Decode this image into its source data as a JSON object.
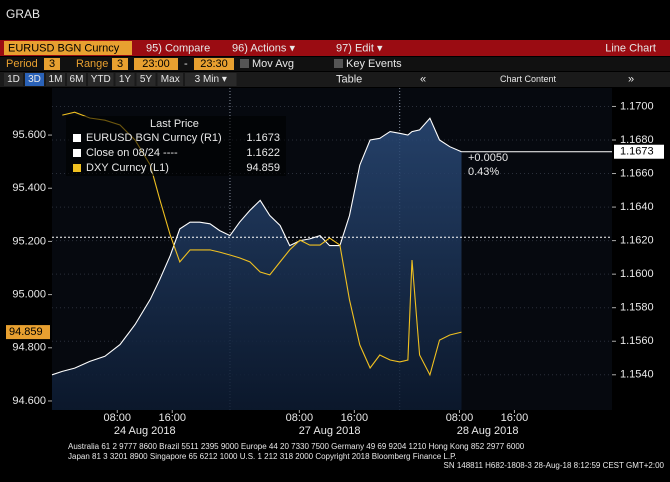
{
  "header": {
    "title": "GRAB"
  },
  "toolbar": {
    "security": "EURUSD BGN Curncy",
    "buttons": [
      "95) Compare",
      "96) Actions ▾",
      "97) Edit ▾"
    ],
    "chart_type": "Line Chart"
  },
  "settings_row": {
    "period_label": "Period",
    "period_value": "3",
    "range_label": "Range",
    "range_value": "3",
    "start": "23:00",
    "dash": "-",
    "end": "23:30",
    "mov_avg": "Mov Avg",
    "key_events": "Key Events"
  },
  "range_buttons": [
    "1D",
    "3D",
    "1M",
    "6M",
    "YTD",
    "1Y",
    "5Y",
    "Max",
    "3 Min ▾"
  ],
  "table_button": "Table",
  "chart_content": "Chart Content",
  "chart_data": {
    "type": "line",
    "legend_title": "Last Price",
    "x": [
      0,
      1.5,
      3.3,
      5.5,
      7.7,
      9.9,
      12.1,
      14.3,
      15.7,
      17.2,
      18.6,
      20.1,
      21.5,
      23,
      24.4,
      25.9,
      27.3,
      28.8,
      30.3,
      31.7,
      33.2,
      34.6,
      36.1,
      37.5,
      39,
      40.4,
      41.9,
      43.3,
      44.8,
      46.3,
      47.7,
      49.2,
      50.6,
      51.8,
      52.4,
      53.5,
      55,
      56.4,
      57.9,
      59.6
    ],
    "xlim": [
      0,
      81.5
    ],
    "xticks": [
      {
        "value": 9.5,
        "label": "08:00"
      },
      {
        "value": 17.5,
        "label": "16:00"
      },
      {
        "value": 36,
        "label": "08:00"
      },
      {
        "value": 44,
        "label": "16:00"
      },
      {
        "value": 59.3,
        "label": "08:00"
      },
      {
        "value": 67.3,
        "label": "16:00"
      }
    ],
    "date_labels": [
      {
        "value": 13.5,
        "label": "24 Aug 2018"
      },
      {
        "value": 40.4,
        "label": "27 Aug 2018"
      },
      {
        "value": 63.4,
        "label": "28 Aug 2018"
      }
    ],
    "session_breaks": [
      25.9,
      50.6
    ],
    "ylim": [
      94.566,
      95.777
    ],
    "yticks": [
      {
        "value": 95.6,
        "label": "95.600"
      },
      {
        "value": 95.4,
        "label": "95.400"
      },
      {
        "value": 95.2,
        "label": "95.200"
      },
      {
        "value": 95.0,
        "label": "95.000"
      },
      {
        "value": 94.8,
        "label": "94.800"
      },
      {
        "value": 94.6,
        "label": "94.600"
      }
    ],
    "y2lim": [
      1.1519,
      1.1711
    ],
    "y2ticks": [
      {
        "value": 1.17,
        "label": "1.1700"
      },
      {
        "value": 1.168,
        "label": "1.1680"
      },
      {
        "value": 1.166,
        "label": "1.1660"
      },
      {
        "value": 1.164,
        "label": "1.1640"
      },
      {
        "value": 1.162,
        "label": "1.1620"
      },
      {
        "value": 1.16,
        "label": "1.1600"
      },
      {
        "value": 1.158,
        "label": "1.1580"
      },
      {
        "value": 1.156,
        "label": "1.1560"
      },
      {
        "value": 1.154,
        "label": "1.1540"
      }
    ],
    "series": [
      {
        "name": "EURUSD BGN Curncy (R1)",
        "color": "#ffffff",
        "axis": "y2",
        "values": [
          1.154,
          1.1542,
          1.1544,
          1.1548,
          1.1551,
          1.1558,
          1.157,
          1.1585,
          1.1597,
          1.1611,
          1.1627,
          1.1631,
          1.1631,
          1.163,
          1.1626,
          1.1623,
          1.1631,
          1.1638,
          1.1644,
          1.1635,
          1.1629,
          1.1617,
          1.162,
          1.1621,
          1.1623,
          1.1617,
          1.1617,
          1.1635,
          1.1665,
          1.168,
          1.1681,
          1.1685,
          1.1684,
          1.1683,
          1.1685,
          1.1686,
          1.1693,
          1.168,
          1.1676,
          1.1673
        ]
      },
      {
        "name": "DXY Curncy (L1)",
        "color": "#f0c020",
        "values": [
          null,
          95.675,
          95.686,
          95.664,
          95.656,
          95.638,
          95.581,
          95.487,
          95.356,
          95.224,
          95.123,
          95.168,
          95.168,
          95.168,
          95.16,
          95.149,
          95.138,
          95.123,
          95.085,
          95.074,
          95.123,
          95.168,
          95.205,
          95.186,
          95.186,
          95.213,
          95.186,
          94.98,
          94.811,
          94.724,
          94.773,
          94.754,
          94.747,
          94.754,
          95.13,
          94.773,
          94.698,
          94.829,
          94.848,
          94.859
        ]
      }
    ],
    "reference_line": {
      "name": "Close on 08/24 ----",
      "value": 1.1622,
      "color": "#ffffff"
    },
    "annotations": [
      "+0.0050",
      "0.43%"
    ]
  },
  "footer": [
    "Australia 61 2 9777 8600 Brazil 5511 2395 9000 Europe 44 20 7330 7500 Germany 49 69 9204 1210 Hong Kong 852 2977 6000",
    "Japan 81 3 3201 8900         Singapore 65 6212 1000         U.S. 1 212 318 2000         Copyright 2018 Bloomberg Finance L.P.",
    "SN 148811 H682-1808-3 28-Aug-18  8:12:59 CEST  GMT+2:00"
  ]
}
